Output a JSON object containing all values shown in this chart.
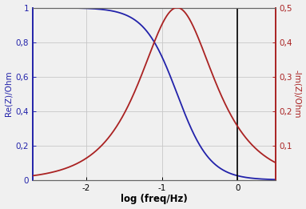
{
  "R": 1.0,
  "C": 1.0,
  "log_f_min": -2.7,
  "log_f_max": 0.5,
  "left_ylabel": "Re(Z)/Ohm",
  "right_ylabel": "-Im(Z)/Ohm",
  "xlabel": "log (freq/Hz)",
  "left_ylim": [
    0,
    1.0
  ],
  "right_ylim": [
    0,
    0.5
  ],
  "left_yticks": [
    0,
    0.2,
    0.4,
    0.6,
    0.8,
    1.0
  ],
  "right_yticks": [
    0.1,
    0.2,
    0.3,
    0.4,
    0.5
  ],
  "xticks": [
    -2,
    -1,
    0
  ],
  "vline_x": 0.0,
  "blue_color": "#2222aa",
  "red_color": "#aa2222",
  "grid_color": "#c8c8c8",
  "background_color": "#f0f0f0",
  "fig_width": 3.83,
  "fig_height": 2.61,
  "dpi": 100
}
